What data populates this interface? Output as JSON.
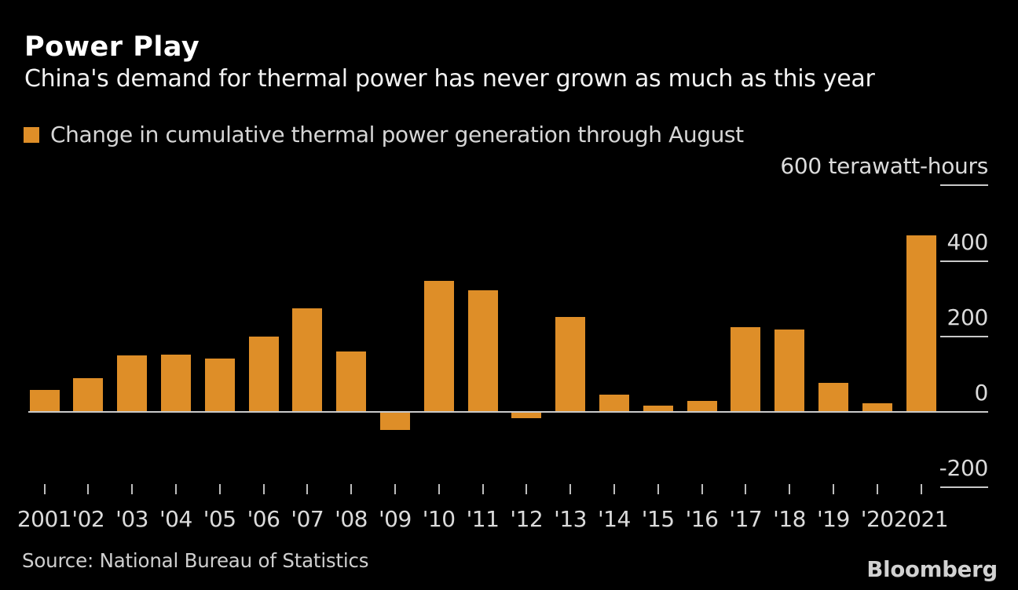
{
  "header": {
    "title": "Power Play",
    "subtitle": "China's demand for thermal power has never grown as much as this year"
  },
  "legend": {
    "label": "Change in cumulative thermal power generation through August",
    "swatch_color": "#DE8E28"
  },
  "chart_data": {
    "type": "bar",
    "title": "Power Play",
    "subtitle": "China's demand for thermal power has never grown as much as this year",
    "series_label": "Change in cumulative thermal power generation through August",
    "unit": "terawatt-hours",
    "categories": [
      "2001",
      "'02",
      "'03",
      "'04",
      "'05",
      "'06",
      "'07",
      "'08",
      "'09",
      "'10",
      "'11",
      "'12",
      "'13",
      "'14",
      "'15",
      "'16",
      "'17",
      "'18",
      "'19",
      "'20",
      "2021"
    ],
    "values": [
      57,
      88,
      147,
      150,
      140,
      198,
      272,
      157,
      -45,
      345,
      320,
      -14,
      249,
      44,
      14,
      28,
      223,
      217,
      74,
      21,
      466
    ],
    "bar_color": "#DE8E28",
    "background_color": "#000000",
    "yticks": [
      {
        "value": 600,
        "label": "600 terawatt-hours"
      },
      {
        "value": 400,
        "label": "400"
      },
      {
        "value": 200,
        "label": "200"
      },
      {
        "value": 0,
        "label": "0"
      },
      {
        "value": -200,
        "label": "-200"
      }
    ],
    "ylim": [
      -250,
      650
    ],
    "grid": "short right-side tick dashes; full-width baseline at zero",
    "legend_position": "top-left"
  },
  "footer": {
    "source": "Source: National Bureau of Statistics",
    "brand": "Bloomberg"
  }
}
